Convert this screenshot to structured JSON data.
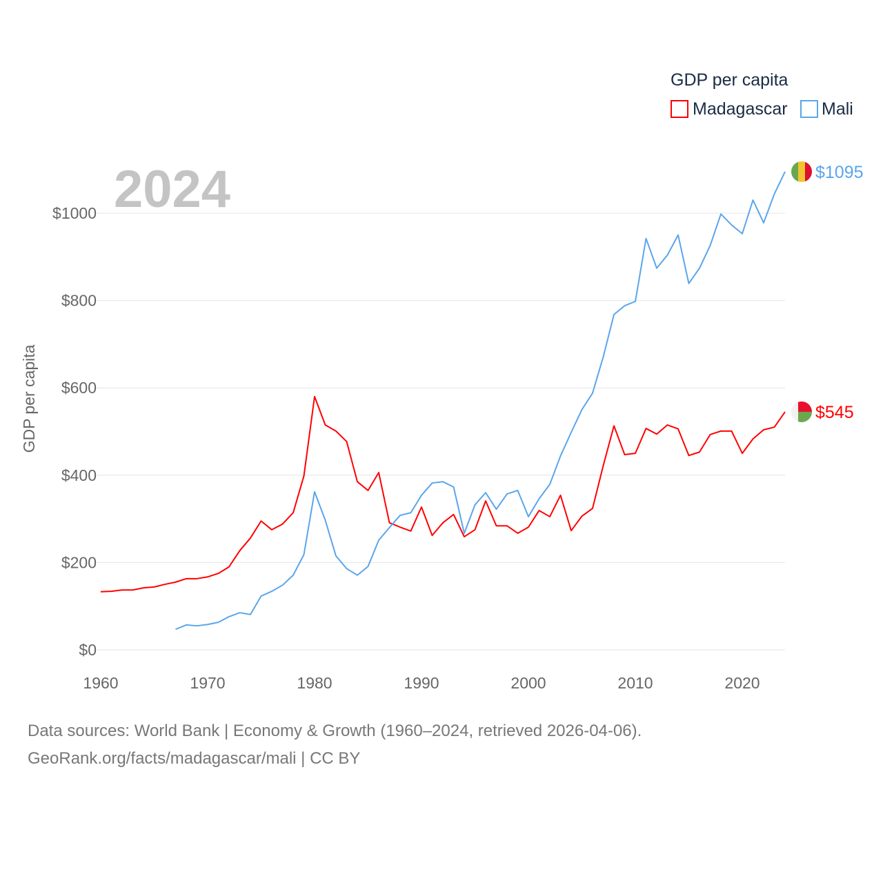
{
  "chart_data": {
    "type": "line",
    "title": "GDP per capita",
    "year_label": "2024",
    "xlabel": "",
    "ylabel": "GDP per capita",
    "xlim": [
      1960,
      2024
    ],
    "ylim": [
      0,
      1100
    ],
    "x_ticks": [
      "1960",
      "1970",
      "1980",
      "1990",
      "2000",
      "2010",
      "2020"
    ],
    "y_ticks": [
      {
        "v": 0,
        "label": "$0"
      },
      {
        "v": 200,
        "label": "$200"
      },
      {
        "v": 400,
        "label": "$400"
      },
      {
        "v": 600,
        "label": "$600"
      },
      {
        "v": 800,
        "label": "$800"
      },
      {
        "v": 1000,
        "label": "$1000"
      }
    ],
    "grid": true,
    "legend": {
      "title": "GDP per capita",
      "placement": "top-right"
    },
    "series": [
      {
        "name": "Madagascar",
        "color": "#ff0000",
        "start": 1960,
        "end_label": "$545",
        "values": [
          133,
          134,
          137,
          137,
          142,
          144,
          150,
          155,
          163,
          163,
          167,
          175,
          190,
          227,
          256,
          295,
          275,
          288,
          314,
          398,
          580,
          515,
          501,
          477,
          385,
          365,
          406,
          291,
          281,
          272,
          327,
          262,
          291,
          310,
          259,
          275,
          341,
          284,
          284,
          267,
          281,
          319,
          305,
          354,
          273,
          306,
          324,
          422,
          513,
          447,
          450,
          507,
          494,
          515,
          506,
          445,
          453,
          493,
          501,
          501,
          450,
          483,
          504,
          510,
          545
        ]
      },
      {
        "name": "Mali",
        "color": "#5aa5ec",
        "start": 1967,
        "end_label": "$1095",
        "values": [
          47,
          57,
          55,
          58,
          63,
          76,
          85,
          81,
          123,
          134,
          148,
          171,
          218,
          362,
          297,
          215,
          186,
          171,
          191,
          251,
          280,
          308,
          314,
          354,
          382,
          385,
          373,
          267,
          332,
          360,
          322,
          357,
          365,
          305,
          346,
          379,
          444,
          498,
          550,
          588,
          671,
          768,
          788,
          798,
          942,
          874,
          904,
          950,
          839,
          874,
          926,
          998,
          973,
          953,
          1030,
          978,
          1044,
          1095
        ]
      }
    ]
  },
  "footer": {
    "line1": "Data sources: World Bank | Economy & Growth (1960–2024, retrieved 2026-04-06).",
    "line2": "GeoRank.org/facts/madagascar/mali | CC BY"
  }
}
